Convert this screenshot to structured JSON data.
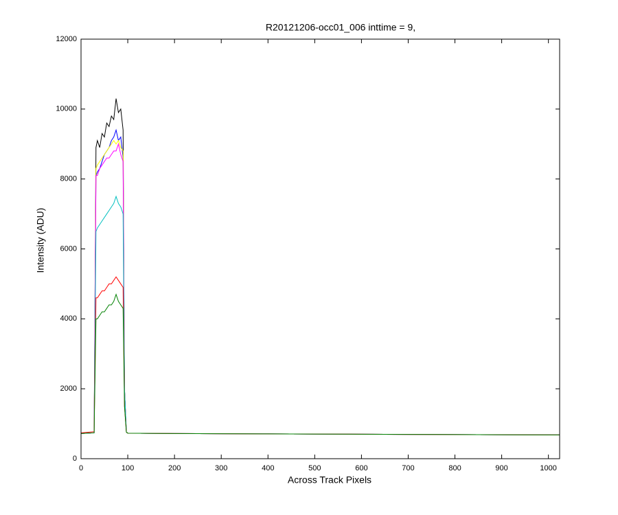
{
  "chart_data": {
    "type": "line",
    "title": "R20121206-occ01_006 inttime = 9,",
    "x_label": "Across Track Pixels",
    "y_label": "Intensity (ADU)",
    "x": [
      0,
      28,
      32,
      35,
      40,
      45,
      50,
      55,
      60,
      65,
      70,
      75,
      80,
      85,
      90,
      93,
      97,
      100,
      200,
      300,
      400,
      500,
      600,
      700,
      800,
      900,
      1024
    ],
    "series": [
      {
        "color": "#000000",
        "values": [
          720,
          740,
          8900,
          9100,
          8900,
          9300,
          9200,
          9600,
          9500,
          9800,
          9700,
          10300,
          9900,
          10000,
          9400,
          2000,
          760,
          730,
          720,
          715,
          710,
          705,
          700,
          695,
          690,
          685,
          680
        ]
      },
      {
        "color": "#0000ff",
        "values": [
          720,
          740,
          8100,
          8200,
          8300,
          8500,
          8700,
          8800,
          8900,
          9100,
          9200,
          9400,
          9100,
          9200,
          8600,
          2000,
          760,
          730,
          720,
          715,
          710,
          705,
          700,
          695,
          690,
          685,
          680
        ]
      },
      {
        "color": "#ffff00",
        "values": [
          720,
          740,
          8300,
          8400,
          8500,
          8600,
          8700,
          8800,
          8900,
          9000,
          9100,
          9000,
          9100,
          8900,
          8800,
          2000,
          760,
          730,
          720,
          715,
          710,
          705,
          700,
          695,
          690,
          685,
          680
        ]
      },
      {
        "color": "#ff00ff",
        "values": [
          720,
          740,
          8100,
          8100,
          8300,
          8400,
          8500,
          8600,
          8600,
          8700,
          8800,
          8800,
          9000,
          8700,
          8500,
          2000,
          760,
          730,
          720,
          715,
          710,
          705,
          700,
          695,
          690,
          685,
          680
        ]
      },
      {
        "color": "#00bfbf",
        "values": [
          720,
          740,
          6500,
          6600,
          6700,
          6800,
          6900,
          7000,
          7100,
          7200,
          7300,
          7500,
          7300,
          7200,
          7000,
          2000,
          760,
          730,
          720,
          715,
          710,
          705,
          700,
          695,
          690,
          685,
          680
        ]
      },
      {
        "color": "#ff0000",
        "values": [
          740,
          770,
          4600,
          4600,
          4700,
          4800,
          4800,
          4900,
          5000,
          5000,
          5100,
          5200,
          5100,
          5000,
          4900,
          1500,
          760,
          730,
          720,
          715,
          710,
          705,
          700,
          695,
          690,
          685,
          680
        ]
      },
      {
        "color": "#008000",
        "values": [
          720,
          740,
          4000,
          4000,
          4100,
          4200,
          4200,
          4300,
          4400,
          4400,
          4500,
          4700,
          4500,
          4400,
          4300,
          1500,
          760,
          730,
          720,
          715,
          710,
          705,
          700,
          695,
          690,
          685,
          680
        ]
      }
    ],
    "xlim": [
      0,
      1024
    ],
    "ylim": [
      0,
      12000
    ],
    "xticks": [
      0,
      100,
      200,
      300,
      400,
      500,
      600,
      700,
      800,
      900,
      1000
    ],
    "yticks": [
      0,
      2000,
      4000,
      6000,
      8000,
      10000,
      12000
    ],
    "grid": false
  }
}
